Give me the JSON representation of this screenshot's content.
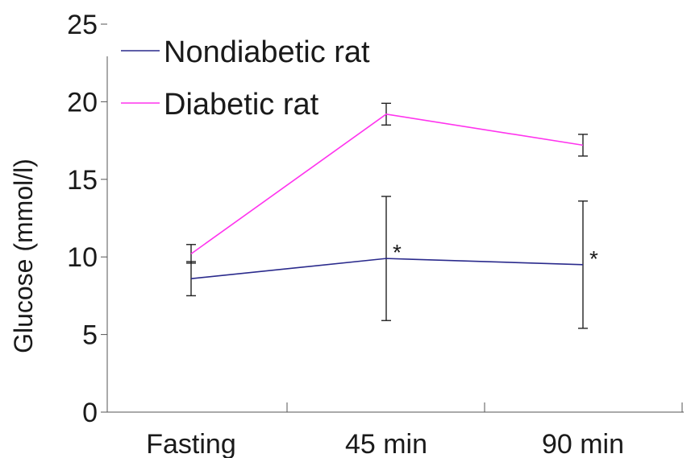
{
  "chart_data": {
    "type": "line",
    "title": "",
    "xlabel": "",
    "ylabel": "Glucose (mmol/l)",
    "categories": [
      "Fasting",
      "45 min",
      "90 min"
    ],
    "ylim": [
      0,
      25
    ],
    "yticks": [
      0,
      5,
      10,
      15,
      20,
      25
    ],
    "grid": false,
    "legend_position": "top-left",
    "series": [
      {
        "name": "Nondiabetic rat",
        "color": "#2a2a8c",
        "values": [
          8.6,
          9.9,
          9.5
        ],
        "error": [
          1.1,
          4.0,
          4.1
        ],
        "annotations": [
          "",
          "*",
          "*"
        ]
      },
      {
        "name": "Diabetic rat",
        "color": "#ff33ee",
        "values": [
          10.2,
          19.2,
          17.2
        ],
        "error": [
          0.6,
          0.7,
          0.7
        ],
        "annotations": [
          "",
          "",
          ""
        ]
      }
    ]
  }
}
